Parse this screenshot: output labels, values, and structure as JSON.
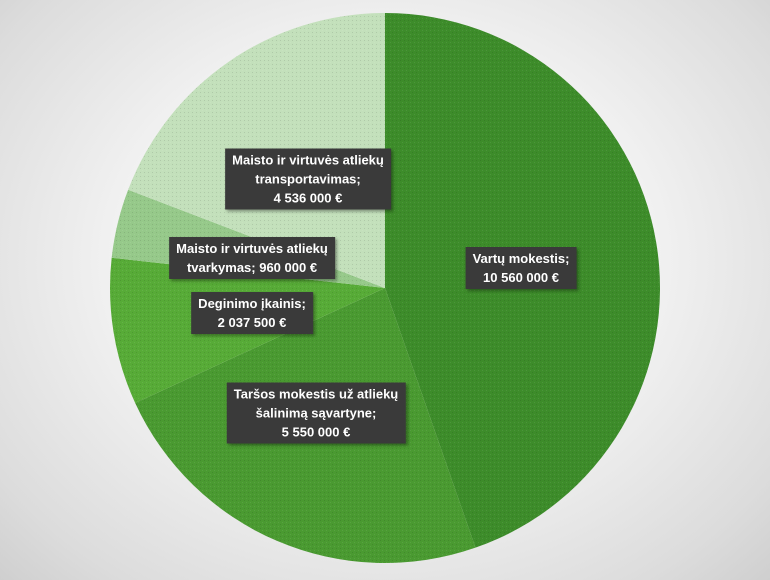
{
  "chart_data": {
    "type": "pie",
    "slices": [
      {
        "label": "Vartų mokestis;\n10 560 000 €",
        "name": "Vartų mokestis",
        "value": 10560000,
        "color": "#3d8c2a"
      },
      {
        "label": "Taršos mokestis už atliekų\nšalinimą sąvartyne;\n5 550 000 €",
        "name": "Taršos mokestis už atliekų šalinimą sąvartyne",
        "value": 5550000,
        "color": "#4a9a31"
      },
      {
        "label": "Deginimo įkainis;\n2 037 500 €",
        "name": "Deginimo įkainis",
        "value": 2037500,
        "color": "#57ab37"
      },
      {
        "label": "Maisto ir virtuvės atliekų\ntvarkymas; 960 000 €",
        "name": "Maisto ir virtuvės atliekų tvarkymas",
        "value": 960000,
        "color": "#96c98a"
      },
      {
        "label": "Maisto ir virtuvės atliekų\ntransportavimas;\n4 536 000 €",
        "name": "Maisto ir virtuvės atliekų transportavimas",
        "value": 4536000,
        "color": "#c3e0bb"
      }
    ],
    "start_angle": "12 o'clock",
    "direction": "clockwise",
    "legend": "none",
    "data_labels": "on slices"
  }
}
